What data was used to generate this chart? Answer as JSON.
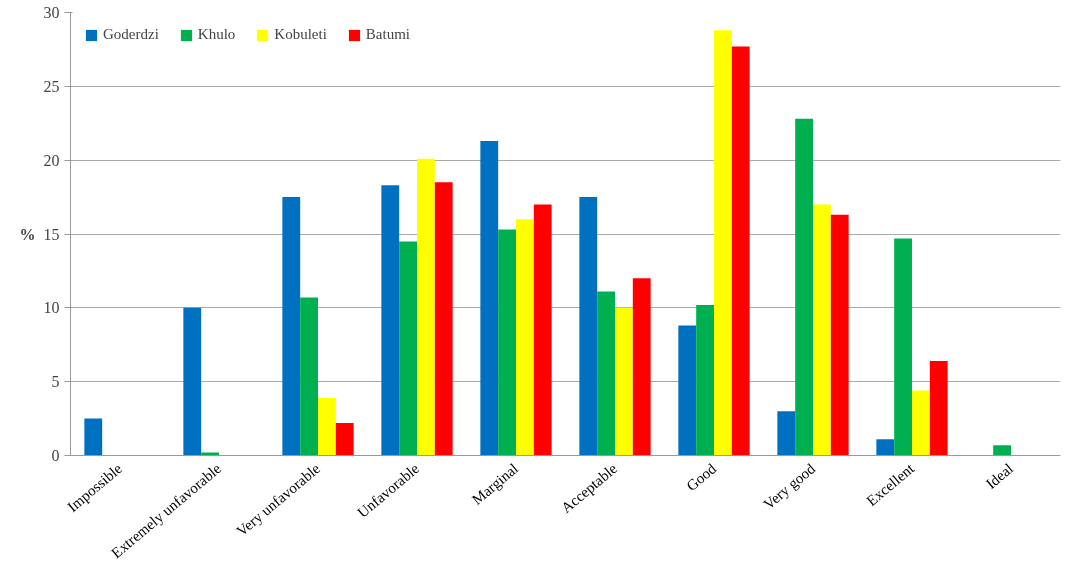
{
  "chart_data": {
    "type": "bar",
    "ylabel": "%",
    "categories": [
      "Impossible",
      "Extremely unfavorable",
      "Very unfavorable",
      "Unfavorable",
      "Marginal",
      "Acceptable",
      "Good",
      "Very good",
      "Excellent",
      "Ideal"
    ],
    "series": [
      {
        "name": "Goderdzi",
        "color": "#0070c0",
        "values": [
          2.5,
          10,
          17.5,
          18.3,
          21.3,
          17.5,
          8.8,
          3,
          1.1,
          0
        ]
      },
      {
        "name": "Khulo",
        "color": "#00b050",
        "values": [
          0,
          0.2,
          10.7,
          14.5,
          15.3,
          11.1,
          10.2,
          22.8,
          14.7,
          0.7
        ]
      },
      {
        "name": "Kobuleti",
        "color": "#ffff00",
        "values": [
          0,
          0,
          3.9,
          20.1,
          16,
          10,
          28.8,
          17,
          4.4,
          0
        ]
      },
      {
        "name": "Batumi",
        "color": "#ff0000",
        "values": [
          0,
          0,
          2.2,
          18.5,
          17,
          12,
          27.7,
          16.3,
          6.4,
          0
        ]
      }
    ],
    "ylim": [
      0,
      30
    ],
    "yticks": [
      0,
      5,
      10,
      15,
      20,
      25,
      30
    ],
    "grid": "y",
    "legend": "top"
  }
}
